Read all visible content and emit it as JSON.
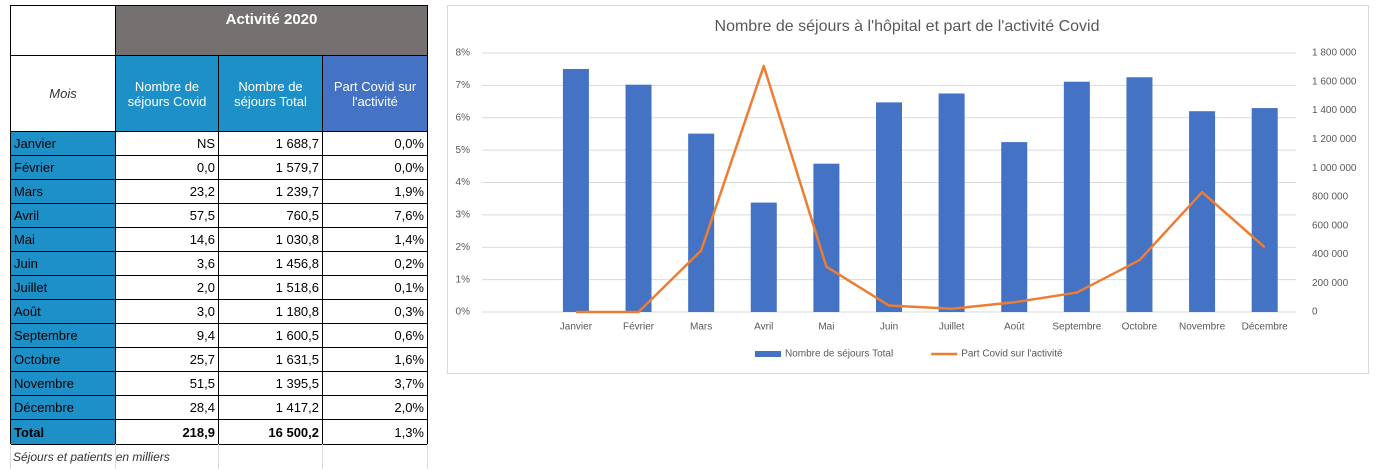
{
  "table": {
    "title": "Activité 2020",
    "columns": [
      "Mois",
      "Nombre de séjours Covid",
      "Nombre de séjours Total",
      "Part Covid sur l'activité"
    ],
    "rows": [
      [
        "Janvier",
        "NS",
        "1 688,7",
        "0,0%"
      ],
      [
        "Février",
        "0,0",
        "1 579,7",
        "0,0%"
      ],
      [
        "Mars",
        "23,2",
        "1 239,7",
        "1,9%"
      ],
      [
        "Avril",
        "57,5",
        "760,5",
        "7,6%"
      ],
      [
        "Mai",
        "14,6",
        "1 030,8",
        "1,4%"
      ],
      [
        "Juin",
        "3,6",
        "1 456,8",
        "0,2%"
      ],
      [
        "Juillet",
        "2,0",
        "1 518,6",
        "0,1%"
      ],
      [
        "Août",
        "3,0",
        "1 180,8",
        "0,3%"
      ],
      [
        "Septembre",
        "9,4",
        "1 600,5",
        "0,6%"
      ],
      [
        "Octobre",
        "25,7",
        "1 631,5",
        "1,6%"
      ],
      [
        "Novembre",
        "51,5",
        "1 395,5",
        "3,7%"
      ],
      [
        "Décembre",
        "28,4",
        "1 417,2",
        "2,0%"
      ]
    ],
    "total": [
      "Total",
      "218,9",
      "16 500,2",
      "1,3%"
    ],
    "note": "Séjours et patients en milliers"
  },
  "chart_data": {
    "type": "bar-line",
    "title": "Nombre de séjours à l'hôpital et part de l'activité Covid",
    "categories": [
      "Janvier",
      "Février",
      "Mars",
      "Avril",
      "Mai",
      "Juin",
      "Juillet",
      "Août",
      "Septembre",
      "Octobre",
      "Novembre",
      "Décembre"
    ],
    "series": [
      {
        "name": "Nombre de séjours Total",
        "type": "bar",
        "axis": "y2",
        "color": "#4472c4",
        "values": [
          1688700,
          1579700,
          1239700,
          760500,
          1030800,
          1456800,
          1518600,
          1180800,
          1600500,
          1631500,
          1395500,
          1417200
        ]
      },
      {
        "name": "Part Covid sur l'activité",
        "type": "line",
        "axis": "y",
        "color": "#ed7d31",
        "values": [
          0.0,
          0.0,
          1.9,
          7.6,
          1.4,
          0.2,
          0.1,
          0.3,
          0.6,
          1.6,
          3.7,
          2.0
        ]
      }
    ],
    "ylim": [
      0,
      8
    ],
    "yticks": [
      {
        "value": 0,
        "label": "0%"
      },
      {
        "value": 1,
        "label": "1%"
      },
      {
        "value": 2,
        "label": "2%"
      },
      {
        "value": 3,
        "label": "3%"
      },
      {
        "value": 4,
        "label": "4%"
      },
      {
        "value": 5,
        "label": "5%"
      },
      {
        "value": 6,
        "label": "6%"
      },
      {
        "value": 7,
        "label": "7%"
      },
      {
        "value": 8,
        "label": "8%"
      }
    ],
    "y2lim": [
      0,
      1800000
    ],
    "y2ticks": [
      0,
      {
        "value": 200000,
        "label": "200 000"
      },
      {
        "value": 400000,
        "label": "400 000"
      },
      {
        "value": 600000,
        "label": "600 000"
      },
      {
        "value": 800000,
        "label": "800 000"
      },
      {
        "value": 1000000,
        "label": "1 000 000"
      },
      {
        "value": 1200000,
        "label": "1 200 000"
      },
      {
        "value": 1400000,
        "label": "1 400 000"
      },
      {
        "value": 1600000,
        "label": "1 600 000"
      },
      {
        "value": 1800000,
        "label": "1 800 000"
      }
    ],
    "grid": true,
    "legend": "bottom"
  }
}
